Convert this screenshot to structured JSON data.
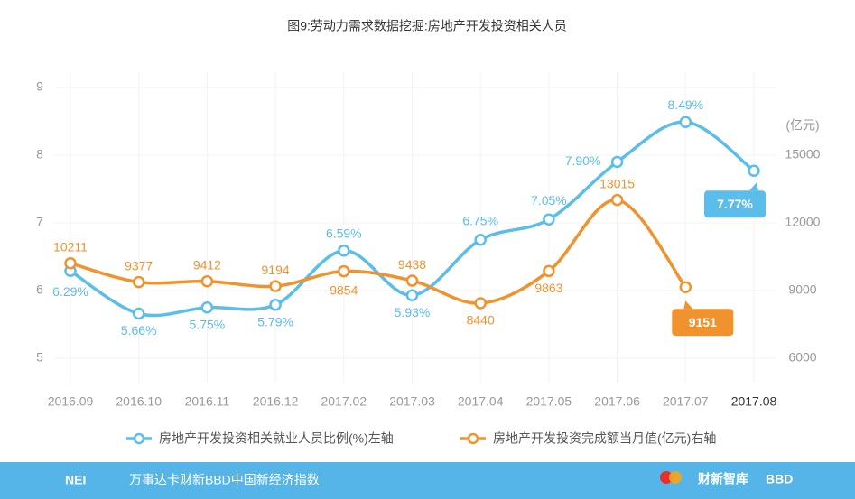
{
  "chart_data": {
    "type": "line",
    "title": "图9:劳动力需求数据挖掘:房地产开发投资相关人员",
    "categories": [
      "2016.09",
      "2016.10",
      "2016.11",
      "2016.12",
      "2017.02",
      "2017.03",
      "2017.04",
      "2017.05",
      "2017.06",
      "2017.07",
      "2017.08"
    ],
    "series": [
      {
        "name": "房地产开发投资相关就业人员比例(%)左轴",
        "color": "#5bbde9",
        "axis": "y",
        "values": [
          6.29,
          5.66,
          5.75,
          5.79,
          6.59,
          5.93,
          6.75,
          7.05,
          7.9,
          8.49,
          7.77
        ],
        "value_labels": [
          "6.29%",
          "5.66%",
          "5.75%",
          "5.79%",
          "6.59%",
          "5.93%",
          "6.75%",
          "7.05%",
          "7.90%",
          "8.49%",
          "7.77%"
        ]
      },
      {
        "name": "房地产开发投资完成额当月值(亿元)右轴",
        "color": "#f0932e",
        "axis": "y2",
        "values": [
          10211,
          9377,
          9412,
          9194,
          9854,
          9438,
          8440,
          9863,
          13015,
          9151,
          null
        ]
      }
    ],
    "ylim": [
      5,
      9
    ],
    "yticks": [
      5,
      6,
      7,
      8,
      9
    ],
    "y2lim": [
      6000,
      18000
    ],
    "y2ticks": [
      6000,
      9000,
      12000,
      15000
    ],
    "y2_label": "(亿元)",
    "grid": true,
    "footer": {
      "logo": "NEI",
      "text": "万事达卡财新BBD中国新经济指数",
      "partner1": "财新智库",
      "partner2": "BBD"
    }
  }
}
